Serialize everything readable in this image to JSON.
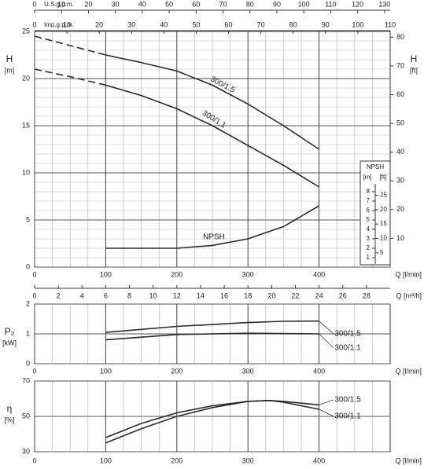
{
  "chart_data": [
    {
      "type": "line",
      "color": "#2a2a2a",
      "grid": true,
      "x_label": "Q [l/min]",
      "y_label": "H",
      "y_unit": "[m]",
      "y2_label": "H",
      "y2_unit": "[ft]",
      "xlim": [
        0,
        500
      ],
      "xticks": [
        0,
        100,
        200,
        300,
        400
      ],
      "ylim": [
        0,
        25
      ],
      "yticks": [
        0,
        5,
        10,
        15,
        20,
        25
      ],
      "y2lim": [
        0,
        82.02
      ],
      "y2ticks": [
        10,
        20,
        30,
        40,
        50,
        60,
        70,
        80
      ],
      "x_minor_step": 25,
      "y_minor_step": 1,
      "top_axes": [
        {
          "label": "U.S.g.p.m.",
          "lim": [
            0,
            132.09
          ],
          "ticks": [
            0,
            10,
            20,
            30,
            40,
            50,
            60,
            70,
            80,
            90,
            100,
            110,
            120,
            130
          ]
        },
        {
          "label": "Imp.g.p.m.",
          "lim": [
            0,
            110
          ],
          "ticks": [
            0,
            10,
            20,
            30,
            40,
            50,
            60,
            70,
            80,
            90,
            100,
            110
          ]
        }
      ],
      "bottom_axis2": {
        "label": "Q [m³/h]",
        "lim": [
          0,
          30
        ],
        "ticks": [
          0,
          2,
          4,
          6,
          8,
          10,
          12,
          14,
          16,
          18,
          20,
          22,
          24,
          26,
          28
        ]
      },
      "npsh_axis": {
        "title": "NPSH",
        "unit": "[m]",
        "unit2": "[ft]",
        "ticks": [
          1,
          2,
          3,
          4,
          5,
          6,
          7,
          8
        ],
        "ticks2": [
          5,
          10,
          15,
          20,
          25
        ]
      },
      "dashed_below": 100,
      "series": [
        {
          "name": "300/1.5",
          "x": [
            0,
            50,
            100,
            150,
            200,
            250,
            300,
            350,
            400
          ],
          "values": [
            24.5,
            23.5,
            22.5,
            21.7,
            20.8,
            19.3,
            17.3,
            15.0,
            12.5
          ]
        },
        {
          "name": "300/1.1",
          "x": [
            0,
            50,
            100,
            150,
            200,
            250,
            300,
            350,
            400
          ],
          "values": [
            21.0,
            20.2,
            19.3,
            18.2,
            16.8,
            15.0,
            12.9,
            10.8,
            8.5
          ]
        },
        {
          "name": "NPSH",
          "x": [
            100,
            150,
            200,
            250,
            300,
            350,
            400
          ],
          "values": [
            2.0,
            2.0,
            2.0,
            2.3,
            3.0,
            4.3,
            6.5
          ]
        }
      ]
    },
    {
      "type": "line",
      "color": "#2a2a2a",
      "grid": true,
      "x_label": "Q [l/min]",
      "y_label": "P₂",
      "y_unit": "[kW]",
      "xlim": [
        0,
        500
      ],
      "xticks": [
        0,
        100,
        200,
        300,
        400
      ],
      "ylim": [
        0,
        2
      ],
      "yticks": [
        0,
        1,
        2
      ],
      "x_minor_step": 25,
      "series": [
        {
          "name": "300/1.5",
          "x": [
            100,
            200,
            300,
            350,
            400
          ],
          "values": [
            1.05,
            1.25,
            1.38,
            1.42,
            1.43
          ]
        },
        {
          "name": "300/1.1",
          "x": [
            100,
            200,
            300,
            400
          ],
          "values": [
            0.8,
            0.98,
            1.02,
            1.0
          ]
        }
      ]
    },
    {
      "type": "line",
      "color": "#2a2a2a",
      "grid": true,
      "x_label": "Q [l/min]",
      "y_label": "η",
      "y_unit": "[%]",
      "xlim": [
        0,
        500
      ],
      "xticks": [
        0,
        100,
        200,
        300,
        400
      ],
      "ylim": [
        30,
        70
      ],
      "yticks": [
        30,
        50,
        70
      ],
      "x_minor_step": 25,
      "series": [
        {
          "name": "300/1.5",
          "x": [
            100,
            150,
            200,
            250,
            300,
            330,
            350,
            400
          ],
          "values": [
            38,
            46,
            52,
            56,
            58.5,
            59,
            58.5,
            56.5
          ]
        },
        {
          "name": "300/1.1",
          "x": [
            100,
            150,
            200,
            250,
            300,
            330,
            350,
            400
          ],
          "values": [
            35,
            43,
            50,
            55,
            58.5,
            59,
            58,
            54
          ]
        }
      ]
    }
  ]
}
